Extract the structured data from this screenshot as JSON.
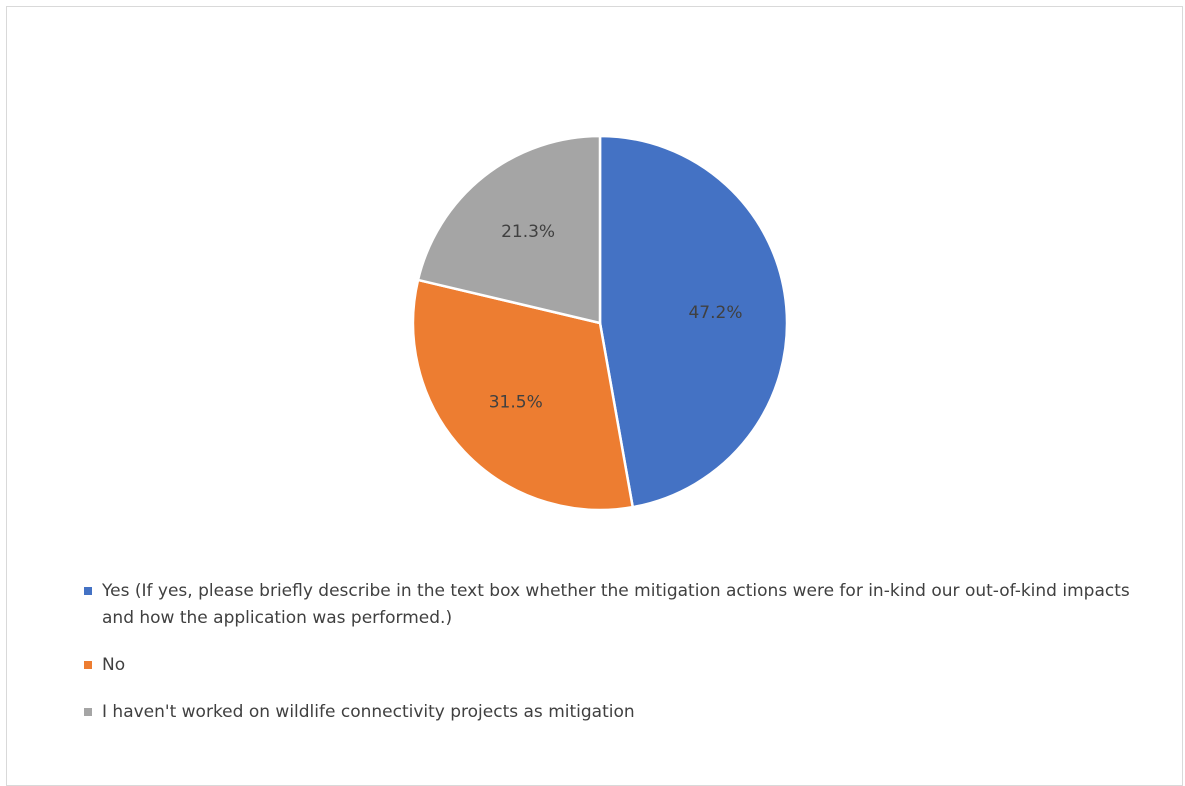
{
  "chart_data": {
    "type": "pie",
    "title": "",
    "slices": [
      {
        "name": "Yes (If yes, please briefly describe in the text box whether the mitigation actions were for in-kind our out-of-kind impacts and how the application was performed.)",
        "value": 47.2,
        "label": "47.2%",
        "color": "#4472C4"
      },
      {
        "name": "No",
        "value": 31.5,
        "label": "31.5%",
        "color": "#ED7D31"
      },
      {
        "name": "I haven't worked on wildlife connectivity projects as mitigation",
        "value": 21.3,
        "label": "21.3%",
        "color": "#A5A5A5"
      }
    ],
    "legend_position": "bottom",
    "start_angle": "12 o'clock",
    "direction": "clockwise"
  }
}
